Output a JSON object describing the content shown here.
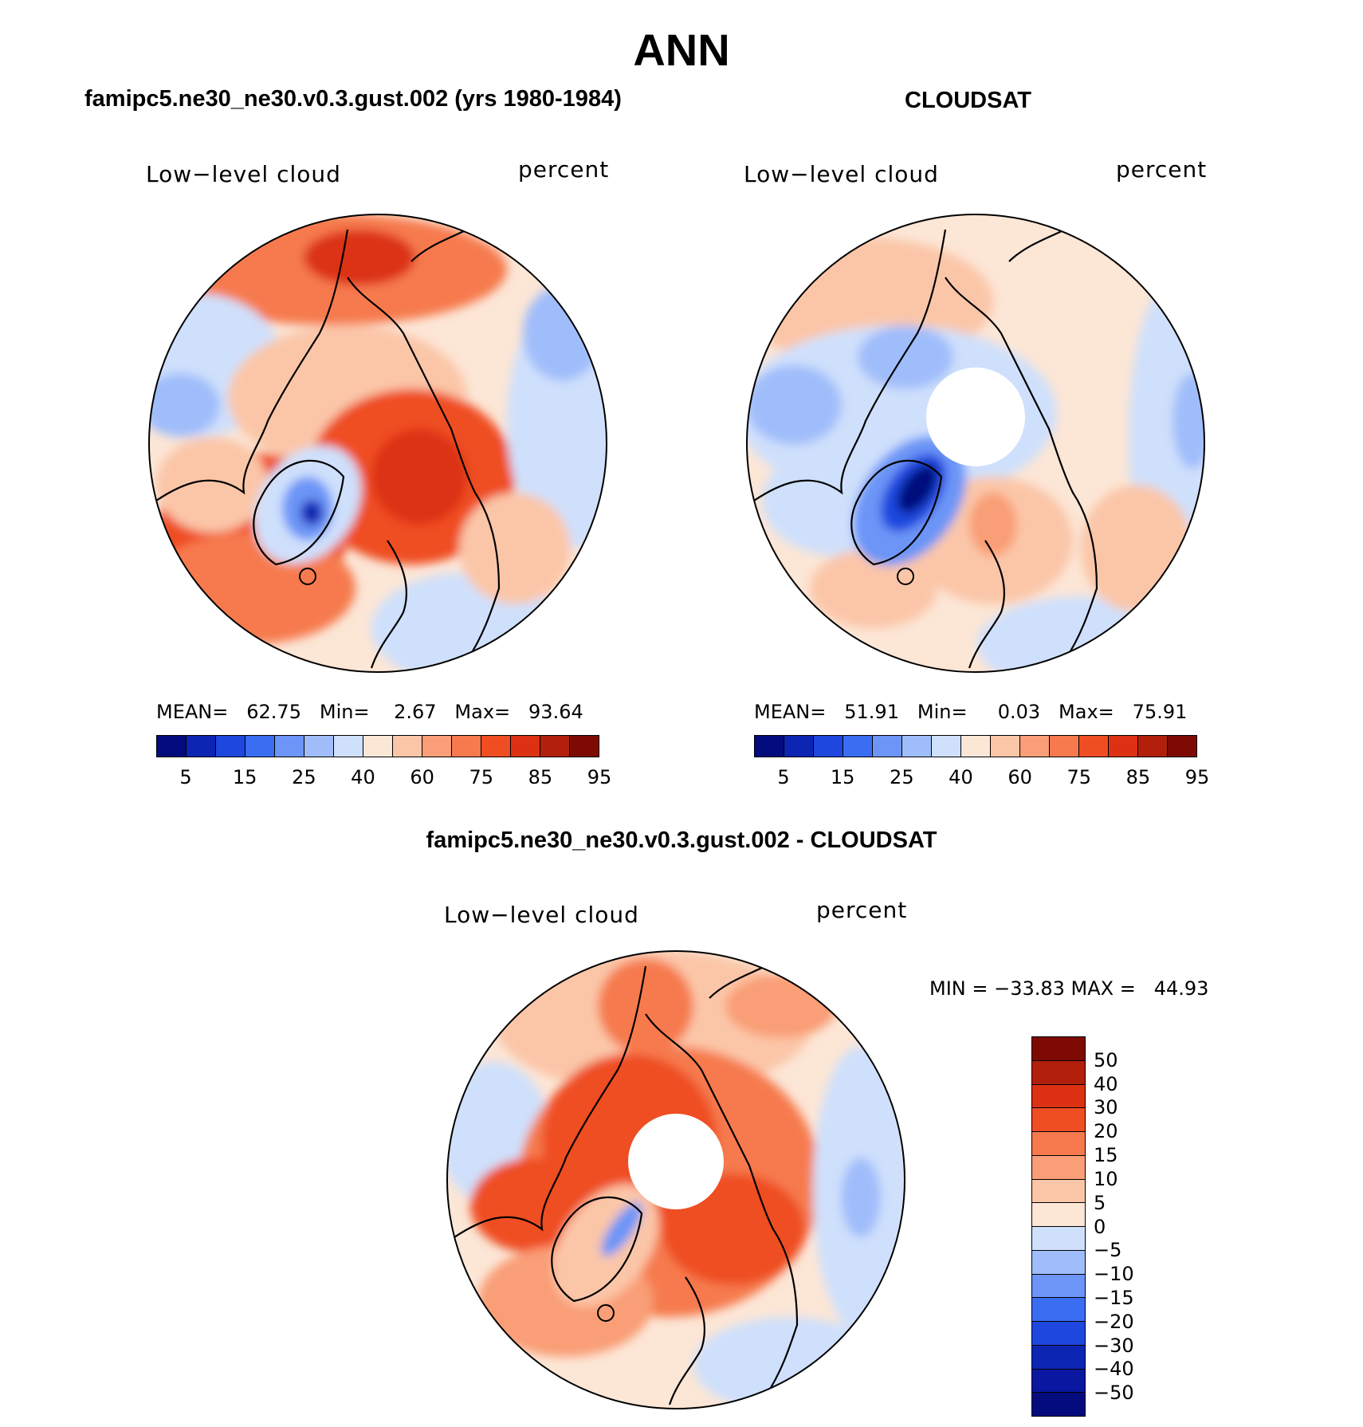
{
  "figure": {
    "title": "ANN"
  },
  "panels": [
    {
      "id": "model",
      "title": "famipc5.ne30_ne30.v0.3.gust.002 (yrs 1980-1984)",
      "left_label": "Low−level cloud",
      "right_label": "percent",
      "stats": {
        "mean_label": "MEAN=",
        "mean": "62.75",
        "min_label": "Min=",
        "min": "2.67",
        "max_label": "Max=",
        "max": "93.64"
      }
    },
    {
      "id": "obs",
      "title": "CLOUDSAT",
      "left_label": "Low−level cloud",
      "right_label": "percent",
      "stats": {
        "mean_label": "MEAN=",
        "mean": "51.91",
        "min_label": "Min=",
        "min": "0.03",
        "max_label": "Max=",
        "max": "75.91"
      }
    },
    {
      "id": "diff",
      "title": "famipc5.ne30_ne30.v0.3.gust.002 - CLOUDSAT",
      "left_label": "Low−level cloud",
      "right_label": "percent",
      "stats_line": "MIN = −33.83 MAX =   44.93"
    }
  ],
  "colorbar_abs": {
    "colors": [
      "#040b7c",
      "#0d25b3",
      "#1d47de",
      "#3a6df2",
      "#6c95f7",
      "#a0bdfb",
      "#cfe0fc",
      "#fce6d6",
      "#fbc6a8",
      "#f99e76",
      "#f67a4e",
      "#ef4e23",
      "#dc3213",
      "#b2200b",
      "#7e0a04"
    ],
    "ticks": [
      "5",
      "15",
      "25",
      "40",
      "60",
      "75",
      "85",
      "95"
    ]
  },
  "colorbar_diff": {
    "colors": [
      "#7e0a04",
      "#b2200b",
      "#dc3213",
      "#ef4e23",
      "#f67a4e",
      "#f99e76",
      "#fbc6a8",
      "#fce6d6",
      "#cfe0fc",
      "#a0bdfb",
      "#6c95f7",
      "#3a6df2",
      "#1d47de",
      "#0d25b3",
      "#0a17a0",
      "#040b7c"
    ],
    "ticks": [
      "50",
      "40",
      "30",
      "20",
      "15",
      "10",
      "5",
      "0",
      "−5",
      "−10",
      "−15",
      "−20",
      "−30",
      "−40",
      "−50"
    ]
  }
}
